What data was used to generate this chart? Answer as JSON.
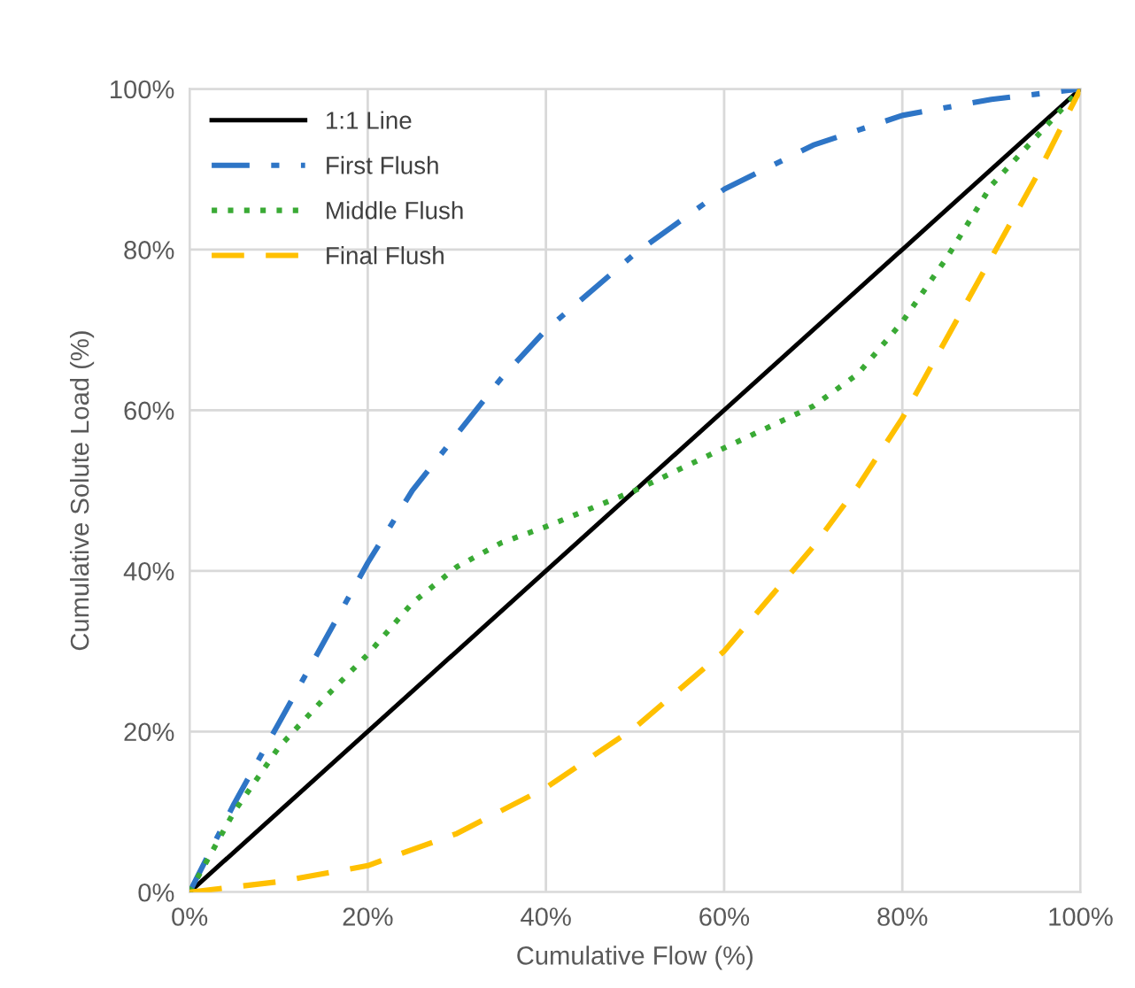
{
  "chart_data": {
    "type": "line",
    "xlabel": "Cumulative Flow (%)",
    "ylabel": "Cumulative Solute Load (%)",
    "xlim": [
      0,
      100
    ],
    "ylim": [
      0,
      100
    ],
    "xticks": [
      {
        "value": 0,
        "label": "0%"
      },
      {
        "value": 20,
        "label": "20%"
      },
      {
        "value": 40,
        "label": "40%"
      },
      {
        "value": 60,
        "label": "60%"
      },
      {
        "value": 80,
        "label": "80%"
      },
      {
        "value": 100,
        "label": "100%"
      }
    ],
    "yticks": [
      {
        "value": 0,
        "label": "0%"
      },
      {
        "value": 20,
        "label": "20%"
      },
      {
        "value": 40,
        "label": "40%"
      },
      {
        "value": 60,
        "label": "60%"
      },
      {
        "value": 80,
        "label": "80%"
      },
      {
        "value": 100,
        "label": "100%"
      }
    ],
    "grid": true,
    "legend": "top left",
    "marker": "none",
    "series": [
      {
        "name": "1:1 Line",
        "color": "#000000",
        "line_style": "solid",
        "x": [
          0,
          100
        ],
        "values": [
          0,
          100
        ]
      },
      {
        "name": "First Flush",
        "color": "#2e75c6",
        "line_style": "dashdot",
        "x": [
          0,
          5,
          10,
          15,
          20,
          25,
          30,
          35,
          40,
          50,
          60,
          70,
          80,
          90,
          100
        ],
        "values": [
          0,
          11,
          21,
          31,
          41,
          50,
          57,
          64,
          70,
          79.5,
          87.5,
          93,
          96.7,
          98.7,
          100
        ]
      },
      {
        "name": "Middle Flush",
        "color": "#3aaa35",
        "line_style": "dotted",
        "x": [
          0,
          5,
          10,
          15,
          20,
          25,
          30,
          35,
          40,
          50,
          60,
          70,
          75,
          80,
          85,
          90,
          95,
          100
        ],
        "values": [
          0,
          10,
          18,
          24,
          29.6,
          36,
          40.5,
          43.5,
          45.5,
          50,
          55.3,
          60.5,
          64.5,
          71,
          79,
          88,
          94,
          100
        ]
      },
      {
        "name": "Final Flush",
        "color": "#ffc000",
        "line_style": "dashed",
        "x": [
          0,
          10,
          20,
          30,
          40,
          50,
          60,
          70,
          75,
          80,
          85,
          90,
          95,
          100
        ],
        "values": [
          0,
          1.3,
          3.3,
          7.3,
          13,
          20.5,
          30,
          43,
          50.5,
          59,
          69,
          79,
          89,
          100
        ]
      }
    ]
  }
}
